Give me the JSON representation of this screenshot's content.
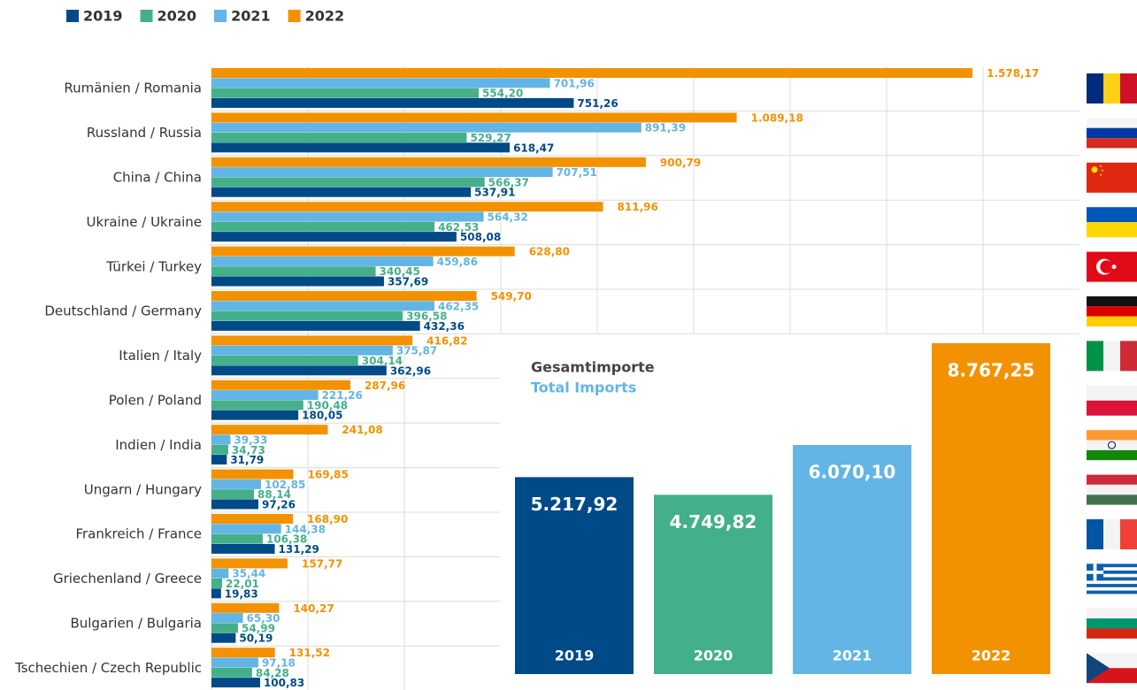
{
  "chart_data": [
    {
      "type": "bar",
      "orientation": "horizontal",
      "legend": "top-left",
      "grid": true,
      "xlim": [
        0,
        1800
      ],
      "xticks": [
        0,
        200,
        400,
        600,
        800,
        1000,
        1200,
        1400,
        1600
      ],
      "categories": [
        "Rumänien / Romania",
        "Russland / Russia",
        "China / China",
        "Ukraine / Ukraine",
        "Türkei / Turkey",
        "Deutschland / Germany",
        "Italien / Italy",
        "Polen / Poland",
        "Indien / India",
        "Ungarn / Hungary",
        "Frankreich / France",
        "Griechenland / Greece",
        "Bulgarien / Bulgaria",
        "Tschechien / Czech Republic"
      ],
      "series": [
        {
          "name": "2019",
          "color": "#004a87",
          "values": [
            751.26,
            618.47,
            537.91,
            508.08,
            357.69,
            432.36,
            362.96,
            180.05,
            31.79,
            97.26,
            131.29,
            19.83,
            50.19,
            100.83
          ],
          "value_labels": [
            "751,26",
            "618,47",
            "537,91",
            "508,08",
            "357,69",
            "432,36",
            "362,96",
            "180,05",
            "31,79",
            "97,26",
            "131,29",
            "19,83",
            "50,19",
            "100,83"
          ]
        },
        {
          "name": "2020",
          "color": "#44b08a",
          "values": [
            554.2,
            529.27,
            566.37,
            462.53,
            340.45,
            396.58,
            304.14,
            190.48,
            34.73,
            88.14,
            106.38,
            22.01,
            54.99,
            84.28
          ],
          "value_labels": [
            "554,20",
            "529,27",
            "566,37",
            "462,53",
            "340,45",
            "396,58",
            "304,14",
            "190,48",
            "34,73",
            "88,14",
            "106,38",
            "22,01",
            "54,99",
            "84,28"
          ]
        },
        {
          "name": "2021",
          "color": "#62b5e5",
          "values": [
            701.96,
            891.39,
            707.51,
            564.32,
            459.86,
            462.35,
            375.87,
            221.26,
            39.33,
            102.85,
            144.38,
            35.44,
            65.3,
            97.18
          ],
          "value_labels": [
            "701,96",
            "891,39",
            "707,51",
            "564,32",
            "459,86",
            "462,35",
            "375,87",
            "221,26",
            "39,33",
            "102,85",
            "144,38",
            "35,44",
            "65,30",
            "97,18"
          ]
        },
        {
          "name": "2022",
          "color": "#f39200",
          "values": [
            1578.17,
            1089.18,
            900.79,
            811.96,
            628.8,
            549.7,
            416.82,
            287.96,
            241.08,
            169.85,
            168.9,
            157.77,
            140.27,
            131.52
          ],
          "value_labels": [
            "1.578,17",
            "1.089,18",
            "900,79",
            "811,96",
            "628,80",
            "549,70",
            "416,82",
            "287,96",
            "241,08",
            "169,85",
            "168,90",
            "157,77",
            "140,27",
            "131,52"
          ]
        }
      ]
    },
    {
      "type": "bar",
      "title": "Gesamtimporte",
      "subtitle": "Total Imports",
      "ylim": [
        0,
        9000
      ],
      "categories": [
        "2019",
        "2020",
        "2021",
        "2022"
      ],
      "values": [
        5217.92,
        4749.82,
        6070.1,
        8767.25
      ],
      "value_labels": [
        "5.217,92",
        "4.749,82",
        "6.070,10",
        "8.767,25"
      ],
      "colors": [
        "#004a87",
        "#44b08a",
        "#62b5e5",
        "#f39200"
      ]
    }
  ]
}
